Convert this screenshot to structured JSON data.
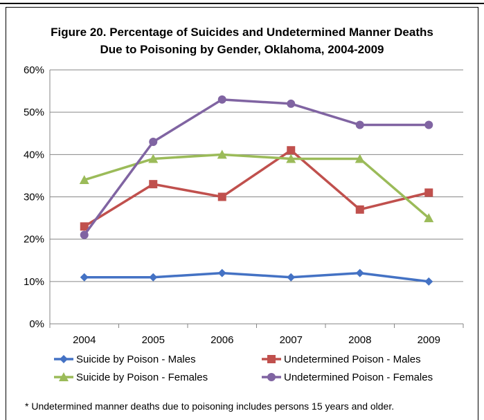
{
  "chart_data": {
    "type": "line",
    "title_line1": "Figure 20. Percentage of Suicides and Undetermined Manner Deaths",
    "title_line2": "Due to Poisoning by Gender, Oklahoma, 2004-2009",
    "categories": [
      "2004",
      "2005",
      "2006",
      "2007",
      "2008",
      "2009"
    ],
    "ylim": [
      0,
      60
    ],
    "y_ticks": [
      0,
      10,
      20,
      30,
      40,
      50,
      60
    ],
    "y_tick_labels": [
      "0%",
      "10%",
      "20%",
      "30%",
      "40%",
      "50%",
      "60%"
    ],
    "grid": true,
    "legend_position": "bottom",
    "series": [
      {
        "name": "Suicide by Poison - Males",
        "color": "#4472c4",
        "marker": "diamond",
        "values": [
          11,
          11,
          12,
          11,
          12,
          10
        ]
      },
      {
        "name": "Undetermined Poison - Males",
        "color": "#c0504d",
        "marker": "square",
        "values": [
          23,
          33,
          30,
          41,
          27,
          31
        ]
      },
      {
        "name": "Suicide by Poison - Females",
        "color": "#9bbb59",
        "marker": "triangle",
        "values": [
          34,
          39,
          40,
          39,
          39,
          25
        ]
      },
      {
        "name": "Undetermined Poison - Females",
        "color": "#8064a2",
        "marker": "circle",
        "values": [
          21,
          43,
          53,
          52,
          47,
          47
        ]
      }
    ]
  },
  "footnote": "* Undetermined manner deaths due to poisoning includes persons 15 years and older."
}
